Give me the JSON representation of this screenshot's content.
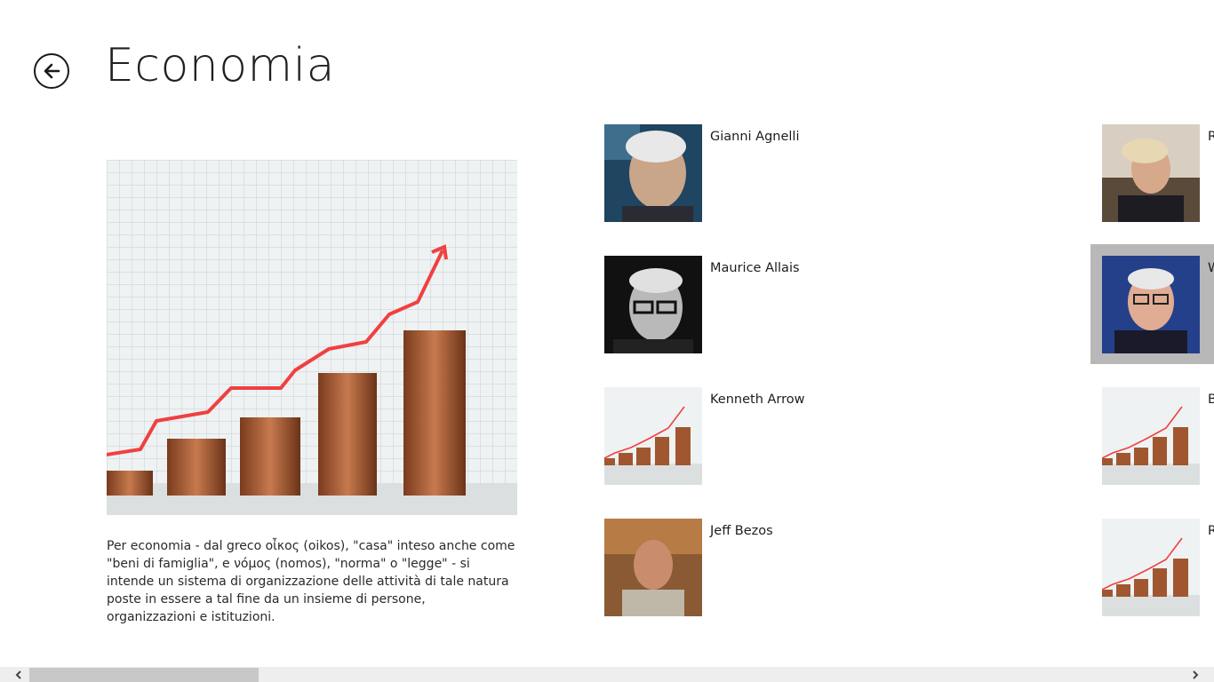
{
  "header": {
    "title": "Economia",
    "back_icon": "back-arrow-icon"
  },
  "hero": {
    "description": "Per economia - dal greco οἶκος (oikos), \"casa\" inteso anche come \"beni di famiglia\", e νόμος (nomos), \"norma\" o \"legge\" - si intende un sistema di organizzazione delle attività di tale natura poste in essere a tal fine da un insieme di persone, organizzazioni e istituzioni."
  },
  "items": [
    {
      "name": "Gianni Agnelli",
      "thumb": "portrait-photo"
    },
    {
      "name": "Maurice Allais",
      "thumb": "portrait-photo-bw"
    },
    {
      "name": "Kenneth Arrow",
      "thumb": "coins-chart-image"
    },
    {
      "name": "Jeff Bezos",
      "thumb": "portrait-photo"
    },
    {
      "name": "R",
      "thumb": "portrait-photo"
    },
    {
      "name": "W",
      "thumb": "portrait-photo"
    },
    {
      "name": "B",
      "thumb": "coins-chart-image"
    },
    {
      "name": "R",
      "thumb": "coins-chart-image"
    }
  ],
  "scrollbar": {
    "left_icon": "chevron-left-icon",
    "right_icon": "chevron-right-icon"
  }
}
